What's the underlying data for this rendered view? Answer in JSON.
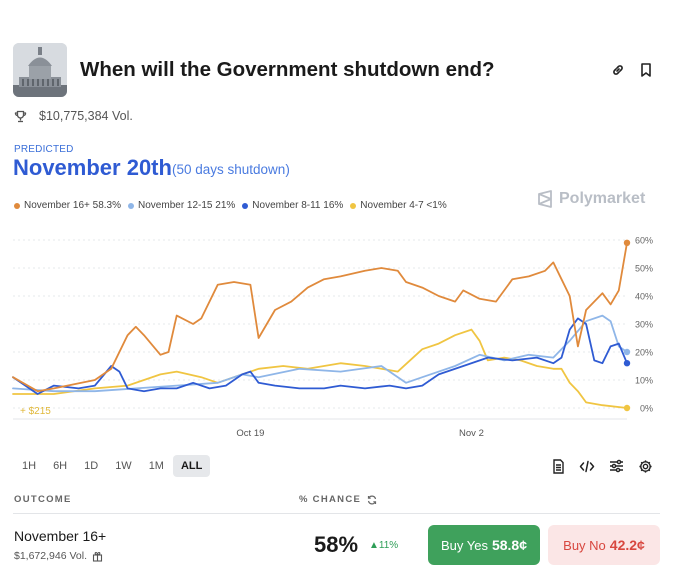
{
  "market": {
    "title": "When will the Government shutdown end?",
    "volume": "$10,775,384 Vol."
  },
  "prediction": {
    "label": "PREDICTED",
    "value": "November 20th",
    "note": "(50 days shutdown)"
  },
  "legend": [
    {
      "label": "November 16+ 58.3%",
      "color": "#e08a3c"
    },
    {
      "label": "November 12-15 21%",
      "color": "#8fb6e8"
    },
    {
      "label": "November 8-11 16%",
      "color": "#2f5bd3"
    },
    {
      "label": "November 4-7 <1%",
      "color": "#f0c542"
    }
  ],
  "watermark": "Polymarket",
  "chart_data": {
    "type": "line",
    "y_ticks": [
      "60%",
      "50%",
      "40%",
      "30%",
      "20%",
      "10%",
      "0%"
    ],
    "ylim": [
      0,
      60
    ],
    "x_ticks": [
      "Oct 19",
      "Nov 2"
    ],
    "annotation": "+ $215",
    "series": [
      {
        "name": "November 16+",
        "color": "#e08a3c",
        "points": [
          [
            0,
            11
          ],
          [
            3,
            6
          ],
          [
            5,
            7
          ],
          [
            10,
            10
          ],
          [
            12,
            14
          ],
          [
            14,
            26
          ],
          [
            15,
            29
          ],
          [
            16,
            26
          ],
          [
            18,
            19
          ],
          [
            19,
            20
          ],
          [
            20,
            33
          ],
          [
            22,
            30
          ],
          [
            23,
            32
          ],
          [
            25,
            44
          ],
          [
            27,
            45
          ],
          [
            29,
            44
          ],
          [
            30,
            25
          ],
          [
            32,
            35
          ],
          [
            34,
            38
          ],
          [
            36,
            43
          ],
          [
            38,
            46
          ],
          [
            40,
            47
          ],
          [
            43,
            49
          ],
          [
            45,
            50
          ],
          [
            47,
            49
          ],
          [
            48,
            45
          ],
          [
            50,
            43
          ],
          [
            52,
            40
          ],
          [
            54,
            38
          ],
          [
            55,
            42
          ],
          [
            57,
            39
          ],
          [
            59,
            38
          ],
          [
            61,
            46
          ],
          [
            63,
            47
          ],
          [
            65,
            49
          ],
          [
            66,
            52
          ],
          [
            67,
            46
          ],
          [
            68,
            40
          ],
          [
            69,
            22
          ],
          [
            70,
            35
          ],
          [
            72,
            41
          ],
          [
            73,
            37
          ],
          [
            74,
            42
          ],
          [
            75,
            59
          ]
        ]
      },
      {
        "name": "November 12-15",
        "color": "#8fb6e8",
        "points": [
          [
            0,
            7
          ],
          [
            5,
            6
          ],
          [
            10,
            6
          ],
          [
            15,
            7
          ],
          [
            20,
            8
          ],
          [
            25,
            9
          ],
          [
            28,
            12
          ],
          [
            30,
            11
          ],
          [
            35,
            14
          ],
          [
            40,
            13
          ],
          [
            45,
            15
          ],
          [
            48,
            9
          ],
          [
            50,
            11
          ],
          [
            54,
            15
          ],
          [
            57,
            19
          ],
          [
            60,
            17
          ],
          [
            63,
            19
          ],
          [
            66,
            18
          ],
          [
            68,
            24
          ],
          [
            70,
            31
          ],
          [
            72,
            33
          ],
          [
            73,
            31
          ],
          [
            74,
            22
          ],
          [
            75,
            20
          ]
        ]
      },
      {
        "name": "November 8-11",
        "color": "#2f5bd3",
        "points": [
          [
            0,
            11
          ],
          [
            3,
            5
          ],
          [
            5,
            8
          ],
          [
            8,
            7
          ],
          [
            10,
            8
          ],
          [
            12,
            15
          ],
          [
            13,
            13
          ],
          [
            14,
            7
          ],
          [
            16,
            6
          ],
          [
            18,
            7
          ],
          [
            20,
            7
          ],
          [
            22,
            9
          ],
          [
            24,
            7
          ],
          [
            26,
            8
          ],
          [
            28,
            12
          ],
          [
            29,
            13
          ],
          [
            30,
            9
          ],
          [
            32,
            8
          ],
          [
            35,
            7
          ],
          [
            38,
            7
          ],
          [
            40,
            8
          ],
          [
            43,
            7
          ],
          [
            46,
            8
          ],
          [
            48,
            7
          ],
          [
            50,
            8
          ],
          [
            52,
            12
          ],
          [
            55,
            15
          ],
          [
            58,
            18
          ],
          [
            61,
            17
          ],
          [
            64,
            18
          ],
          [
            66,
            16
          ],
          [
            67,
            18
          ],
          [
            68,
            28
          ],
          [
            69,
            32
          ],
          [
            70,
            30
          ],
          [
            71,
            17
          ],
          [
            72,
            16
          ],
          [
            73,
            22
          ],
          [
            74,
            23
          ],
          [
            75,
            16
          ]
        ]
      },
      {
        "name": "November 4-7",
        "color": "#f0c542",
        "points": [
          [
            0,
            5
          ],
          [
            5,
            5
          ],
          [
            10,
            7
          ],
          [
            14,
            8
          ],
          [
            16,
            10
          ],
          [
            18,
            12
          ],
          [
            20,
            13
          ],
          [
            23,
            11
          ],
          [
            25,
            9
          ],
          [
            28,
            12
          ],
          [
            30,
            14
          ],
          [
            33,
            15
          ],
          [
            36,
            14
          ],
          [
            40,
            16
          ],
          [
            43,
            15
          ],
          [
            45,
            14
          ],
          [
            47,
            13
          ],
          [
            50,
            21
          ],
          [
            52,
            23
          ],
          [
            54,
            26
          ],
          [
            56,
            28
          ],
          [
            57,
            24
          ],
          [
            58,
            17
          ],
          [
            60,
            18
          ],
          [
            62,
            17
          ],
          [
            64,
            15
          ],
          [
            66,
            14
          ],
          [
            67,
            14
          ],
          [
            68,
            9
          ],
          [
            69,
            6
          ],
          [
            70,
            2
          ],
          [
            72,
            1
          ],
          [
            75,
            0
          ]
        ]
      }
    ]
  },
  "ranges": [
    "1H",
    "6H",
    "1D",
    "1W",
    "1M",
    "ALL"
  ],
  "outcome": {
    "col_outcome": "OUTCOME",
    "col_chance": "% CHANCE",
    "name": "November 16+",
    "volume": "$1,672,946 Vol.",
    "chance": "58%",
    "change": "▲11%",
    "buy_yes_label": "Buy Yes",
    "buy_yes_price": "58.8¢",
    "buy_no_label": "Buy No",
    "buy_no_price": "42.2¢"
  }
}
